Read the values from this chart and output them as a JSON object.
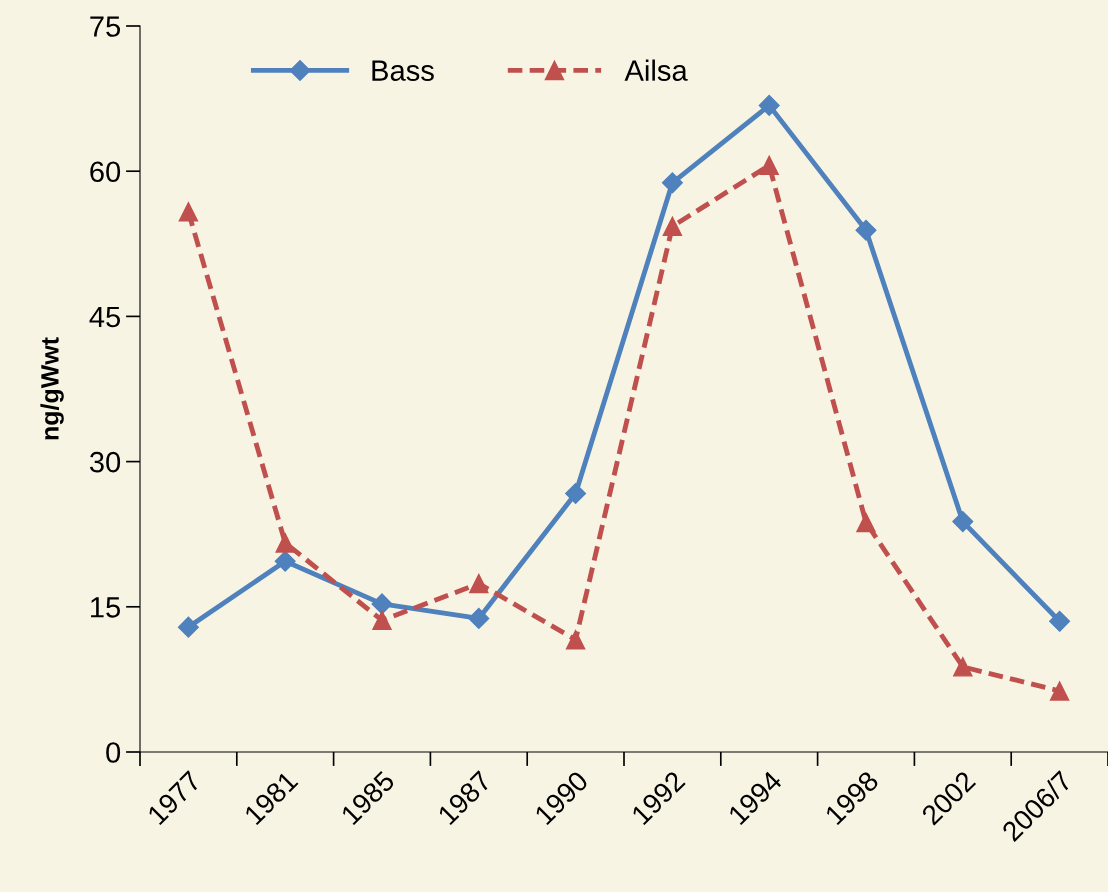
{
  "chart_data": {
    "type": "line",
    "ylabel": "ng/gWwt",
    "categories": [
      "1977",
      "1981",
      "1985",
      "1987",
      "1990",
      "1992",
      "1994",
      "1998",
      "2002",
      "2006/7"
    ],
    "series": [
      {
        "name": "Bass",
        "color": "#4f81bd",
        "marker": "diamond",
        "line_style": "solid",
        "values": [
          12.9,
          19.7,
          15.3,
          13.8,
          26.7,
          58.8,
          66.8,
          53.9,
          23.8,
          13.5
        ]
      },
      {
        "name": "Ailsa",
        "color": "#c0504d",
        "marker": "triangle",
        "line_style": "dashed",
        "values": [
          55.8,
          21.6,
          13.6,
          17.4,
          11.6,
          54.3,
          60.6,
          23.7,
          8.8,
          6.3
        ]
      }
    ],
    "ylim": [
      0,
      75
    ],
    "yticks": [
      0,
      15,
      30,
      45,
      60,
      75
    ],
    "grid": false,
    "legend": "top left"
  }
}
